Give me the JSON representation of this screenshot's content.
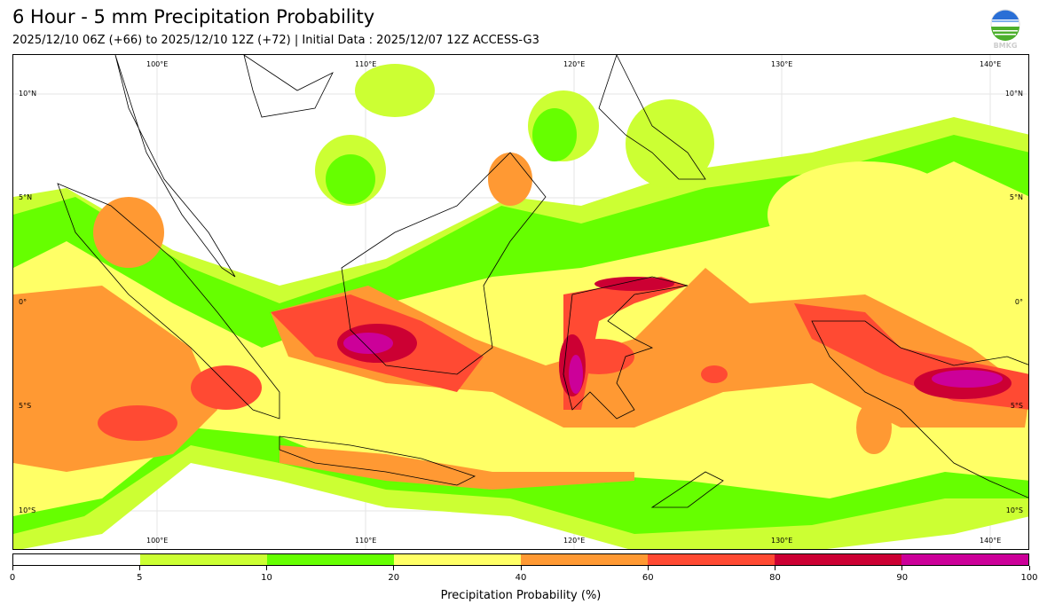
{
  "header": {
    "title": "6 Hour - 5 mm Precipitation Probability",
    "subtitle": "2025/12/10 06Z (+66) to 2025/12/10 12Z (+72) | Initial Data : 2025/12/07 12Z ACCESS-G3",
    "logo_text": "BMKG"
  },
  "map": {
    "lon_labels": [
      "100°E",
      "110°E",
      "120°E",
      "130°E",
      "140°E"
    ],
    "lat_labels": [
      "10°N",
      "5°N",
      "0°",
      "5°S",
      "10°S"
    ]
  },
  "colorbar": {
    "label": "Precipitation Probability (%)",
    "ticks": [
      "0",
      "5",
      "10",
      "20",
      "40",
      "60",
      "80",
      "90",
      "100"
    ],
    "bins": [
      {
        "range": "0-5",
        "color": "#ffffff"
      },
      {
        "range": "5-10",
        "color": "#ccff33"
      },
      {
        "range": "10-20",
        "color": "#66ff00"
      },
      {
        "range": "20-40",
        "color": "#ffff66"
      },
      {
        "range": "40-60",
        "color": "#ff9933"
      },
      {
        "range": "60-80",
        "color": "#ff4a33"
      },
      {
        "range": "80-90",
        "color": "#cc0033"
      },
      {
        "range": "90-100",
        "color": "#cc0099"
      }
    ]
  }
}
